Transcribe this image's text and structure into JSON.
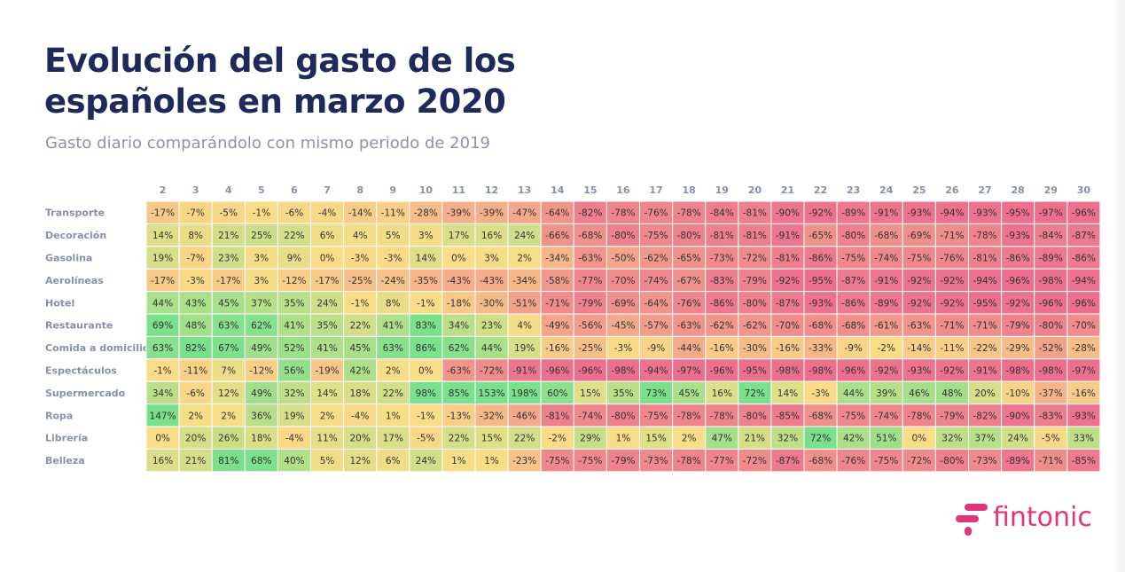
{
  "title": "Evolución del gasto de los españoles en marzo 2020",
  "subtitle": "Gasto diario comparándolo con mismo periodo de 2019",
  "logo": {
    "text": "fintonic",
    "icon": "fintonic-logo-icon",
    "color": "#e0367a"
  },
  "colors": {
    "title": "#1d2a5b",
    "subtitle": "#8c93a8",
    "labels": "#8790a8",
    "cell_text": "#333333"
  },
  "chart_data": {
    "type": "heatmap",
    "title": "Evolución del gasto de los españoles en marzo 2020",
    "subtitle": "Gasto diario comparándolo con mismo periodo de 2019",
    "unit": "%",
    "columns": [
      "2",
      "3",
      "4",
      "5",
      "6",
      "7",
      "8",
      "9",
      "10",
      "11",
      "12",
      "13",
      "14",
      "15",
      "16",
      "17",
      "18",
      "19",
      "20",
      "21",
      "22",
      "23",
      "24",
      "25",
      "26",
      "27",
      "28",
      "29",
      "30"
    ],
    "rows": [
      {
        "label": "Transporte",
        "values": [
          -17,
          -7,
          -5,
          -1,
          -6,
          -4,
          -14,
          -11,
          -28,
          -39,
          -39,
          -47,
          -64,
          -82,
          -78,
          -76,
          -78,
          -84,
          -81,
          -90,
          -92,
          -89,
          -91,
          -93,
          -94,
          -93,
          -95,
          -97,
          -96
        ]
      },
      {
        "label": "Decoración",
        "values": [
          14,
          8,
          21,
          25,
          22,
          6,
          4,
          5,
          3,
          17,
          16,
          24,
          -66,
          -68,
          -80,
          -75,
          -80,
          -81,
          -81,
          -91,
          -65,
          -80,
          -68,
          -69,
          -71,
          -78,
          -93,
          -84,
          -87
        ]
      },
      {
        "label": "Gasolina",
        "values": [
          19,
          -7,
          23,
          3,
          9,
          0,
          -3,
          -3,
          14,
          0,
          3,
          2,
          -34,
          -63,
          -50,
          -62,
          -65,
          -73,
          -72,
          -81,
          -86,
          -75,
          -74,
          -75,
          -76,
          -81,
          -86,
          -89,
          -86
        ]
      },
      {
        "label": "Aerolíneas",
        "values": [
          -17,
          -3,
          -17,
          3,
          -12,
          -17,
          -25,
          -24,
          -35,
          -43,
          -43,
          -34,
          -58,
          -77,
          -70,
          -74,
          -67,
          -83,
          -79,
          -92,
          -95,
          -87,
          -91,
          -92,
          -92,
          -94,
          -96,
          -98,
          -94
        ]
      },
      {
        "label": "Hotel",
        "values": [
          44,
          43,
          45,
          37,
          35,
          24,
          -1,
          8,
          -1,
          -18,
          -30,
          -51,
          -71,
          -79,
          -69,
          -64,
          -76,
          -86,
          -80,
          -87,
          -93,
          -86,
          -89,
          -92,
          -92,
          -95,
          -92,
          -96,
          -96
        ]
      },
      {
        "label": "Restaurante",
        "values": [
          69,
          48,
          63,
          62,
          41,
          35,
          22,
          41,
          83,
          34,
          23,
          4,
          -49,
          -56,
          -45,
          -57,
          -63,
          -62,
          -62,
          -70,
          -68,
          -68,
          -61,
          -63,
          -71,
          -71,
          -79,
          -80,
          -70
        ]
      },
      {
        "label": "Comida a domicilio",
        "values": [
          63,
          82,
          67,
          49,
          52,
          41,
          45,
          63,
          86,
          62,
          44,
          19,
          -16,
          -25,
          -3,
          -9,
          -44,
          -16,
          -30,
          -16,
          -33,
          -9,
          -2,
          -14,
          -11,
          -22,
          -29,
          -52,
          -28
        ]
      },
      {
        "label": "Espectáculos",
        "values": [
          -1,
          -11,
          7,
          -12,
          56,
          -19,
          42,
          2,
          0,
          -63,
          -72,
          -91,
          -96,
          -96,
          -98,
          -94,
          -97,
          -96,
          -95,
          -98,
          -98,
          -96,
          -92,
          -93,
          -92,
          -91,
          -98,
          -98,
          -97
        ]
      },
      {
        "label": "Supermercado",
        "values": [
          34,
          -6,
          12,
          49,
          32,
          14,
          18,
          22,
          98,
          85,
          153,
          198,
          60,
          15,
          35,
          73,
          45,
          16,
          72,
          14,
          -3,
          44,
          39,
          46,
          48,
          20,
          -10,
          -37,
          -16
        ]
      },
      {
        "label": "Ropa",
        "values": [
          147,
          2,
          2,
          36,
          19,
          2,
          -4,
          1,
          -1,
          -13,
          -32,
          -46,
          -81,
          -74,
          -80,
          -75,
          -78,
          -78,
          -80,
          -85,
          -68,
          -75,
          -74,
          -78,
          -79,
          -82,
          -90,
          -83,
          -93
        ]
      },
      {
        "label": "Librería",
        "values": [
          0,
          20,
          26,
          18,
          -4,
          11,
          20,
          17,
          -5,
          22,
          15,
          22,
          -2,
          29,
          1,
          15,
          2,
          47,
          21,
          32,
          72,
          42,
          51,
          0,
          32,
          37,
          24,
          -5,
          33
        ]
      },
      {
        "label": "Belleza",
        "values": [
          16,
          21,
          81,
          68,
          40,
          5,
          12,
          6,
          24,
          1,
          1,
          -23,
          -75,
          -75,
          -79,
          -73,
          -78,
          -77,
          -72,
          -87,
          -68,
          -76,
          -75,
          -72,
          -80,
          -73,
          -89,
          -71,
          -85
        ]
      }
    ]
  }
}
